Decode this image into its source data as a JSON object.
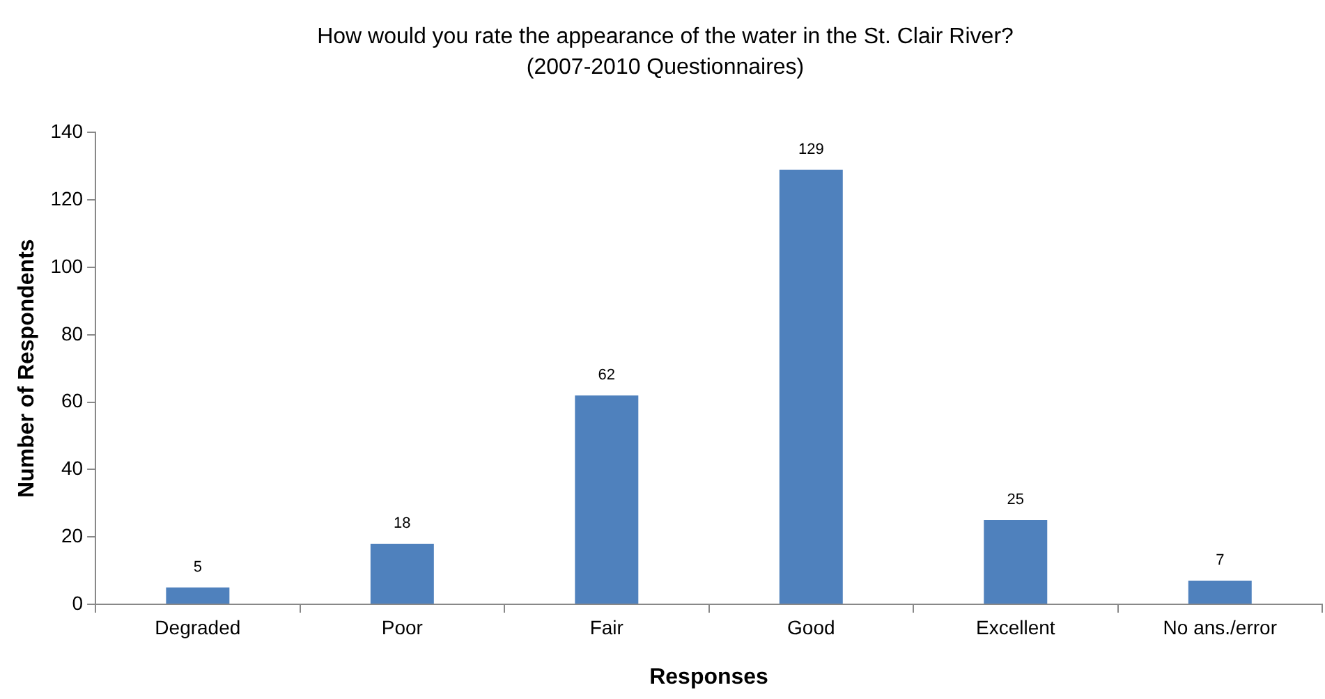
{
  "chart_data": {
    "type": "bar",
    "title": "How would you rate the appearance of the water in the St. Clair River?\n(2007-2010 Questionnaires)",
    "xlabel": "Responses",
    "ylabel": "Number of Respondents",
    "categories": [
      "Degraded",
      "Poor",
      "Fair",
      "Good",
      "Excellent",
      "No ans./error"
    ],
    "values": [
      5,
      18,
      62,
      129,
      25,
      7
    ],
    "color": "#4f81bd",
    "ylim": [
      0,
      140
    ],
    "yticks": [
      0,
      20,
      40,
      60,
      80,
      100,
      120,
      140
    ],
    "grid": false,
    "legend": false,
    "data_labels": true
  }
}
